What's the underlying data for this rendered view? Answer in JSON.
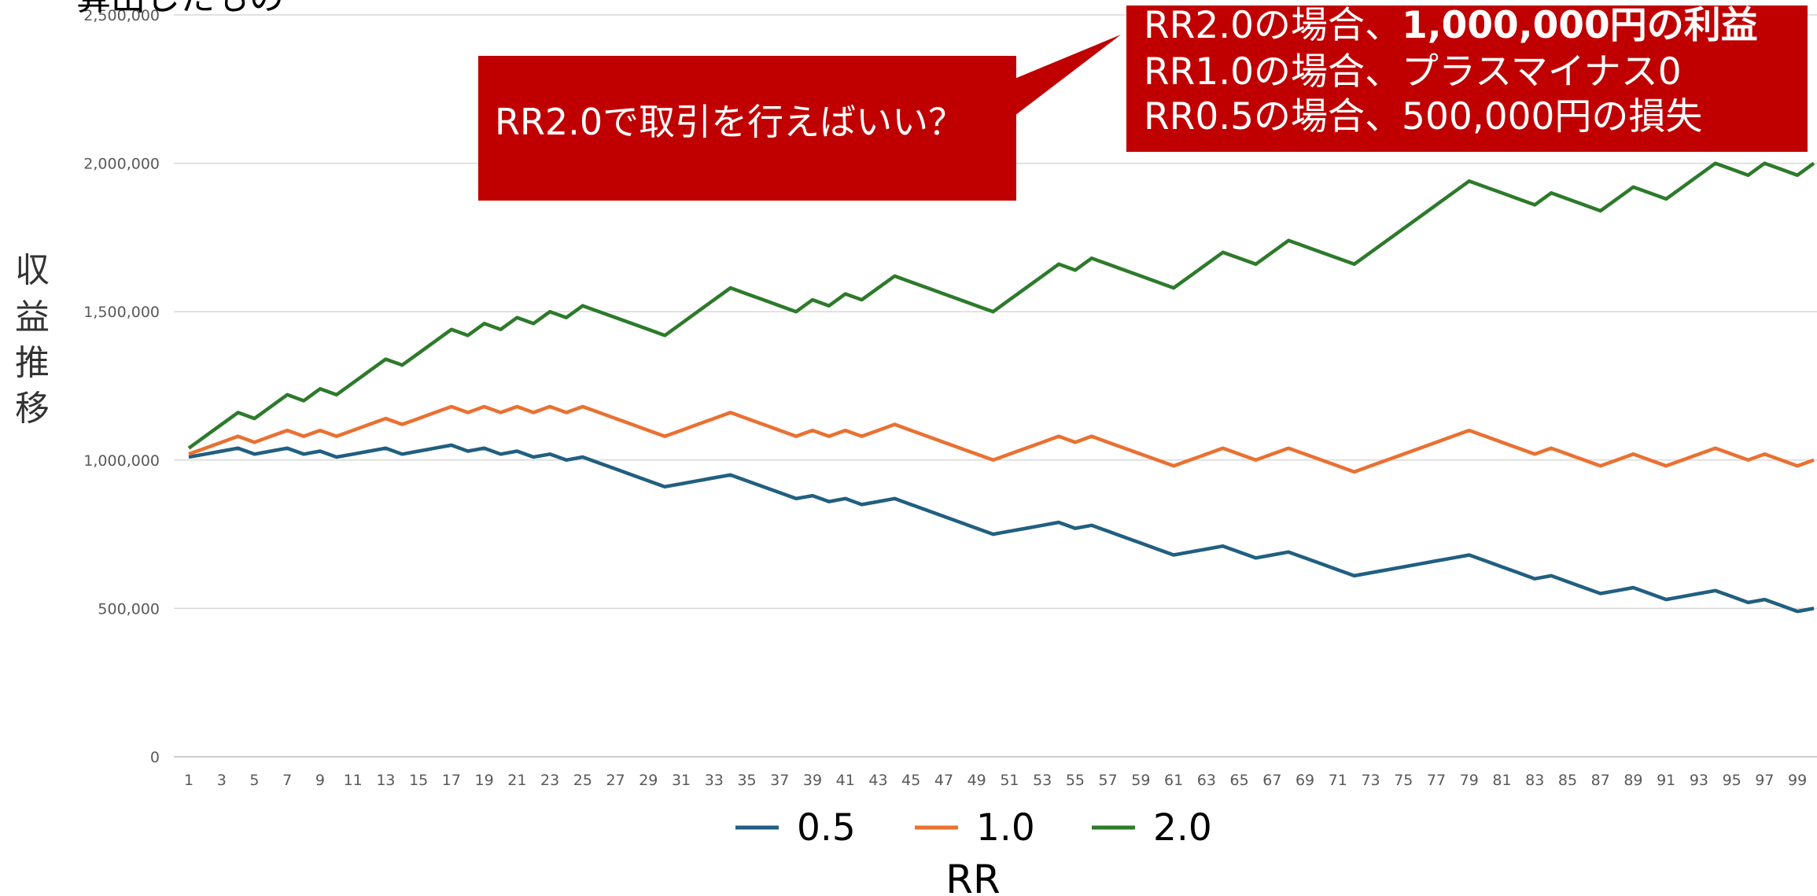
{
  "chart_data": {
    "type": "line",
    "title": "算出したもの",
    "xlabel": "RR",
    "ylabel": "収益推移",
    "x": [
      1,
      2,
      3,
      4,
      5,
      6,
      7,
      8,
      9,
      10,
      11,
      12,
      13,
      14,
      15,
      16,
      17,
      18,
      19,
      20,
      21,
      22,
      23,
      24,
      25,
      26,
      27,
      28,
      29,
      30,
      31,
      32,
      33,
      34,
      35,
      36,
      37,
      38,
      39,
      40,
      41,
      42,
      43,
      44,
      45,
      46,
      47,
      48,
      49,
      50,
      51,
      52,
      53,
      54,
      55,
      56,
      57,
      58,
      59,
      60,
      61,
      62,
      63,
      64,
      65,
      66,
      67,
      68,
      69,
      70,
      71,
      72,
      73,
      74,
      75,
      76,
      77,
      78,
      79,
      80,
      81,
      82,
      83,
      84,
      85,
      86,
      87,
      88,
      89,
      90,
      91,
      92,
      93,
      94,
      95,
      96,
      97,
      98,
      99,
      100
    ],
    "xlim": [
      1,
      100
    ],
    "xticks": [
      1,
      3,
      5,
      7,
      9,
      11,
      13,
      15,
      17,
      19,
      21,
      23,
      25,
      27,
      29,
      31,
      33,
      35,
      37,
      39,
      41,
      43,
      45,
      47,
      49,
      51,
      53,
      55,
      57,
      59,
      61,
      63,
      65,
      67,
      69,
      71,
      73,
      75,
      77,
      79,
      81,
      83,
      85,
      87,
      89,
      91,
      93,
      95,
      97,
      99
    ],
    "ylim": [
      0,
      2500000
    ],
    "yticks": [
      0,
      {
        "value": 500000,
        "label": "500,000"
      },
      {
        "value": 1000000,
        "label": "1,000,000"
      },
      {
        "value": 1500000,
        "label": "1,500,000"
      },
      {
        "value": 2000000,
        "label": "2,000,000"
      },
      {
        "value": 2500000,
        "label": "2,500,000"
      }
    ],
    "grid": true,
    "legend": "bottom",
    "series": [
      {
        "name": "0.5",
        "color": "#215f80",
        "values": [
          1010000,
          1020000,
          1030000,
          1040000,
          1020000,
          1030000,
          1040000,
          1020000,
          1030000,
          1010000,
          1020000,
          1030000,
          1040000,
          1020000,
          1030000,
          1040000,
          1050000,
          1030000,
          1040000,
          1020000,
          1030000,
          1010000,
          1020000,
          1000000,
          1010000,
          990000,
          970000,
          950000,
          930000,
          910000,
          920000,
          930000,
          940000,
          950000,
          930000,
          910000,
          890000,
          870000,
          880000,
          860000,
          870000,
          850000,
          860000,
          870000,
          850000,
          830000,
          810000,
          790000,
          770000,
          750000,
          760000,
          770000,
          780000,
          790000,
          770000,
          780000,
          760000,
          740000,
          720000,
          700000,
          680000,
          690000,
          700000,
          710000,
          690000,
          670000,
          680000,
          690000,
          670000,
          650000,
          630000,
          610000,
          620000,
          630000,
          640000,
          650000,
          660000,
          670000,
          680000,
          660000,
          640000,
          620000,
          600000,
          610000,
          590000,
          570000,
          550000,
          560000,
          570000,
          550000,
          530000,
          540000,
          550000,
          560000,
          540000,
          520000,
          530000,
          510000,
          490000,
          500000
        ]
      },
      {
        "name": "1.0",
        "color": "#e97132",
        "values": [
          1020000,
          1040000,
          1060000,
          1080000,
          1060000,
          1080000,
          1100000,
          1080000,
          1100000,
          1080000,
          1100000,
          1120000,
          1140000,
          1120000,
          1140000,
          1160000,
          1180000,
          1160000,
          1180000,
          1160000,
          1180000,
          1160000,
          1180000,
          1160000,
          1180000,
          1160000,
          1140000,
          1120000,
          1100000,
          1080000,
          1100000,
          1120000,
          1140000,
          1160000,
          1140000,
          1120000,
          1100000,
          1080000,
          1100000,
          1080000,
          1100000,
          1080000,
          1100000,
          1120000,
          1100000,
          1080000,
          1060000,
          1040000,
          1020000,
          1000000,
          1020000,
          1040000,
          1060000,
          1080000,
          1060000,
          1080000,
          1060000,
          1040000,
          1020000,
          1000000,
          980000,
          1000000,
          1020000,
          1040000,
          1020000,
          1000000,
          1020000,
          1040000,
          1020000,
          1000000,
          980000,
          960000,
          980000,
          1000000,
          1020000,
          1040000,
          1060000,
          1080000,
          1100000,
          1080000,
          1060000,
          1040000,
          1020000,
          1040000,
          1020000,
          1000000,
          980000,
          1000000,
          1020000,
          1000000,
          980000,
          1000000,
          1020000,
          1040000,
          1020000,
          1000000,
          1020000,
          1000000,
          980000,
          1000000
        ]
      },
      {
        "name": "2.0",
        "color": "#2d7a2b",
        "values": [
          1040000,
          1080000,
          1120000,
          1160000,
          1140000,
          1180000,
          1220000,
          1200000,
          1240000,
          1220000,
          1260000,
          1300000,
          1340000,
          1320000,
          1360000,
          1400000,
          1440000,
          1420000,
          1460000,
          1440000,
          1480000,
          1460000,
          1500000,
          1480000,
          1520000,
          1500000,
          1480000,
          1460000,
          1440000,
          1420000,
          1460000,
          1500000,
          1540000,
          1580000,
          1560000,
          1540000,
          1520000,
          1500000,
          1540000,
          1520000,
          1560000,
          1540000,
          1580000,
          1620000,
          1600000,
          1580000,
          1560000,
          1540000,
          1520000,
          1500000,
          1540000,
          1580000,
          1620000,
          1660000,
          1640000,
          1680000,
          1660000,
          1640000,
          1620000,
          1600000,
          1580000,
          1620000,
          1660000,
          1700000,
          1680000,
          1660000,
          1700000,
          1740000,
          1720000,
          1700000,
          1680000,
          1660000,
          1700000,
          1740000,
          1780000,
          1820000,
          1860000,
          1900000,
          1940000,
          1920000,
          1900000,
          1880000,
          1860000,
          1900000,
          1880000,
          1860000,
          1840000,
          1880000,
          1920000,
          1900000,
          1880000,
          1920000,
          1960000,
          2000000,
          1980000,
          1960000,
          2000000,
          1980000,
          1960000,
          2000000
        ]
      }
    ],
    "callout_1": "RR2.0で取引を行えばいい？",
    "callout_2": [
      [
        "RR2.0の場合、",
        "1,000,000円の利益"
      ],
      [
        "RR1.0の場合、プラスマイナス0"
      ],
      [
        "RR0.5の場合、500,000円の損失"
      ]
    ],
    "callout_color": "#c00000"
  }
}
